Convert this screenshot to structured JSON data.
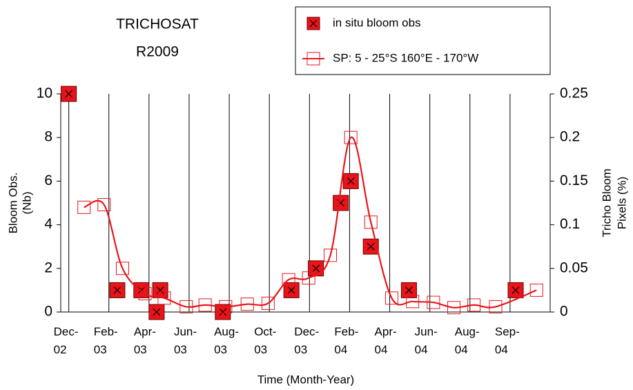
{
  "chart_data": {
    "type": "scatter-line",
    "title": "TRICHOSAT",
    "subtitle": "R2009",
    "xlabel": "Time (Month-Year)",
    "ylabel": [
      "Bloom Obs.",
      "(Nb)"
    ],
    "y2label": [
      "Tricho Bloom",
      "Pixels (%)"
    ],
    "xlim": [
      -0.2,
      12
    ],
    "xticks": [
      {
        "value": 0,
        "label": "Dec-02"
      },
      {
        "value": 1,
        "label": "Feb-03"
      },
      {
        "value": 2,
        "label": "Apr-03"
      },
      {
        "value": 3,
        "label": "Jun-03"
      },
      {
        "value": 4,
        "label": "Aug-03"
      },
      {
        "value": 5,
        "label": "Oct-03"
      },
      {
        "value": 6,
        "label": "Dec-03"
      },
      {
        "value": 7,
        "label": "Feb-04"
      },
      {
        "value": 8,
        "label": "Apr-04"
      },
      {
        "value": 9,
        "label": "Jun-04"
      },
      {
        "value": 10,
        "label": "Aug-04"
      },
      {
        "value": 11,
        "label": "Sep-04"
      }
    ],
    "ylim": [
      0,
      10
    ],
    "yticks": [
      0,
      2,
      4,
      6,
      8,
      10
    ],
    "y2lim": [
      0,
      0.25
    ],
    "y2ticks": [
      0,
      0.05,
      0.1,
      0.15,
      0.2,
      0.25
    ],
    "grid": true,
    "series": [
      {
        "name": "in situ bloom obs",
        "color": "#e8141a",
        "axis": "y",
        "x": [
          0,
          1.21,
          1.81,
          2.19,
          2.28,
          3.84,
          5.55,
          6.16,
          6.78,
          7.03,
          7.53,
          8.48,
          11.14
        ],
        "values": [
          10,
          1,
          1,
          0,
          1,
          0,
          1,
          2,
          5,
          6,
          3,
          1,
          1
        ]
      },
      {
        "name": "SP: 5 - 25°S 160°E - 170°W",
        "color": "#e8141a",
        "axis": "y2",
        "x": [
          0.38,
          0.88,
          1.34,
          1.9,
          2.38,
          2.93,
          3.4,
          3.91,
          4.45,
          4.97,
          5.48,
          5.98,
          6.52,
          7.03,
          7.53,
          8.05,
          8.57,
          9.09,
          9.6,
          10.1,
          10.64,
          11.66
        ],
        "values": [
          0.12,
          0.123,
          0.05,
          0.021,
          0.016,
          0.006,
          0.008,
          0.006,
          0.009,
          0.01,
          0.037,
          0.039,
          0.065,
          0.2,
          0.103,
          0.016,
          0.012,
          0.011,
          0.005,
          0.008,
          0.006,
          0.025
        ]
      }
    ]
  }
}
